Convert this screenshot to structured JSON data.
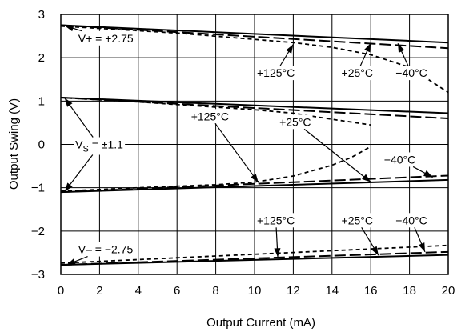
{
  "chart_data": {
    "type": "line",
    "xlabel": "Output Current (mA)",
    "ylabel": "Output Swing (V)",
    "xlim": [
      0,
      20
    ],
    "ylim": [
      -3,
      3
    ],
    "xticks": [
      0,
      2,
      4,
      6,
      8,
      10,
      12,
      14,
      16,
      18,
      20
    ],
    "yticks": [
      3,
      2,
      1,
      0,
      -1,
      -2,
      -3
    ],
    "ytick_labels": [
      "3",
      "2",
      "1",
      "0",
      "−1",
      "−2",
      "−3"
    ],
    "grid": true,
    "line_styles": {
      "+125°C": "solid",
      "+25°C": "long-dash",
      "−40°C": "short-dash"
    },
    "series": [
      {
        "temp": "+125°C",
        "style": "solid",
        "points": [
          [
            0,
            2.75
          ],
          [
            20,
            2.35
          ]
        ]
      },
      {
        "temp": "+25°C",
        "style": "long-dash",
        "points": [
          [
            0,
            2.75
          ],
          [
            20,
            2.22
          ]
        ]
      },
      {
        "temp": "−40°C",
        "style": "short-dash",
        "points": [
          [
            0,
            2.73
          ],
          [
            6,
            2.57
          ],
          [
            12,
            2.35
          ],
          [
            14,
            2.24
          ],
          [
            16,
            2.07
          ],
          [
            18,
            1.78
          ],
          [
            20,
            1.2
          ]
        ]
      },
      {
        "temp": "+125°C",
        "style": "solid",
        "points": [
          [
            0,
            1.08
          ],
          [
            20,
            0.72
          ]
        ]
      },
      {
        "temp": "+25°C",
        "style": "long-dash",
        "points": [
          [
            0,
            1.08
          ],
          [
            20,
            0.6
          ]
        ]
      },
      {
        "temp": "−40°C",
        "style": "short-dash",
        "points": [
          [
            0,
            1.08
          ],
          [
            4,
            0.98
          ],
          [
            8,
            0.86
          ],
          [
            10,
            0.8
          ],
          [
            12,
            0.72
          ],
          [
            14,
            0.58
          ],
          [
            16,
            0.45
          ]
        ]
      },
      {
        "temp": "+125°C",
        "style": "solid",
        "points": [
          [
            0,
            -1.1
          ],
          [
            20,
            -0.82
          ]
        ]
      },
      {
        "temp": "+25°C",
        "style": "long-dash",
        "points": [
          [
            0,
            -1.1
          ],
          [
            20,
            -0.72
          ]
        ]
      },
      {
        "temp": "−40°C",
        "style": "short-dash",
        "points": [
          [
            0,
            -1.08
          ],
          [
            4,
            -1.0
          ],
          [
            8,
            -0.93
          ],
          [
            10,
            -0.87
          ],
          [
            12,
            -0.73
          ],
          [
            14,
            -0.48
          ],
          [
            15,
            -0.3
          ],
          [
            16,
            -0.05
          ]
        ]
      },
      {
        "temp": "+125°C",
        "style": "solid",
        "points": [
          [
            0,
            -2.78
          ],
          [
            20,
            -2.55
          ]
        ]
      },
      {
        "temp": "+25°C",
        "style": "long-dash",
        "points": [
          [
            0,
            -2.78
          ],
          [
            20,
            -2.48
          ]
        ]
      },
      {
        "temp": "−40°C",
        "style": "short-dash",
        "points": [
          [
            0,
            -2.74
          ],
          [
            20,
            -2.33
          ]
        ]
      }
    ],
    "annotations": [
      {
        "text": "V+ = +2.75",
        "kind": "plain",
        "pos": [
          0.9,
          2.45
        ],
        "anchor": "start",
        "arrows": [
          [
            0.2,
            2.74
          ]
        ]
      },
      {
        "text": "V– = −2.75",
        "kind": "plain",
        "pos": [
          0.9,
          -2.42
        ],
        "anchor": "start",
        "arrows": [
          [
            0.3,
            -2.78
          ]
        ]
      },
      {
        "text": "±1.1",
        "kind": "vs",
        "prefix": "V",
        "sub": "S",
        "mid": " = ",
        "pos": [
          0.75,
          0.0
        ],
        "anchor": "start",
        "arrows": [
          [
            0.2,
            1.07
          ],
          [
            0.2,
            -1.09
          ]
        ]
      },
      {
        "text": "+125°C",
        "kind": "plain",
        "pos": [
          11.1,
          1.65
        ],
        "anchor": "middle",
        "arrows": [
          [
            12.0,
            2.31
          ]
        ]
      },
      {
        "text": "+25°C",
        "kind": "plain",
        "pos": [
          15.3,
          1.65
        ],
        "anchor": "middle",
        "arrows": [
          [
            16.0,
            2.34
          ]
        ]
      },
      {
        "text": "−40°C",
        "kind": "plain",
        "pos": [
          18.1,
          1.65
        ],
        "anchor": "middle",
        "arrows": [
          [
            17.4,
            2.33
          ]
        ]
      },
      {
        "text": "+125°C",
        "kind": "plain",
        "pos": [
          7.7,
          0.65
        ],
        "anchor": "middle",
        "arrows": [
          [
            10.2,
            -0.88
          ]
        ]
      },
      {
        "text": "+25°C",
        "kind": "plain",
        "pos": [
          12.1,
          0.52
        ],
        "anchor": "middle",
        "arrows": [
          [
            16.0,
            -0.87
          ]
        ]
      },
      {
        "text": "−40°C",
        "kind": "plain",
        "pos": [
          17.5,
          -0.35
        ],
        "anchor": "middle",
        "arrows": [
          [
            19.2,
            -0.76
          ]
        ]
      },
      {
        "text": "+125°C",
        "kind": "plain",
        "pos": [
          11.1,
          -1.75
        ],
        "anchor": "middle",
        "arrows": [
          [
            11.2,
            -2.6
          ]
        ]
      },
      {
        "text": "+25°C",
        "kind": "plain",
        "pos": [
          15.3,
          -1.75
        ],
        "anchor": "middle",
        "arrows": [
          [
            16.4,
            -2.56
          ]
        ]
      },
      {
        "text": "−40°C",
        "kind": "plain",
        "pos": [
          18.1,
          -1.75
        ],
        "anchor": "middle",
        "arrows": [
          [
            18.8,
            -2.48
          ]
        ]
      }
    ]
  }
}
